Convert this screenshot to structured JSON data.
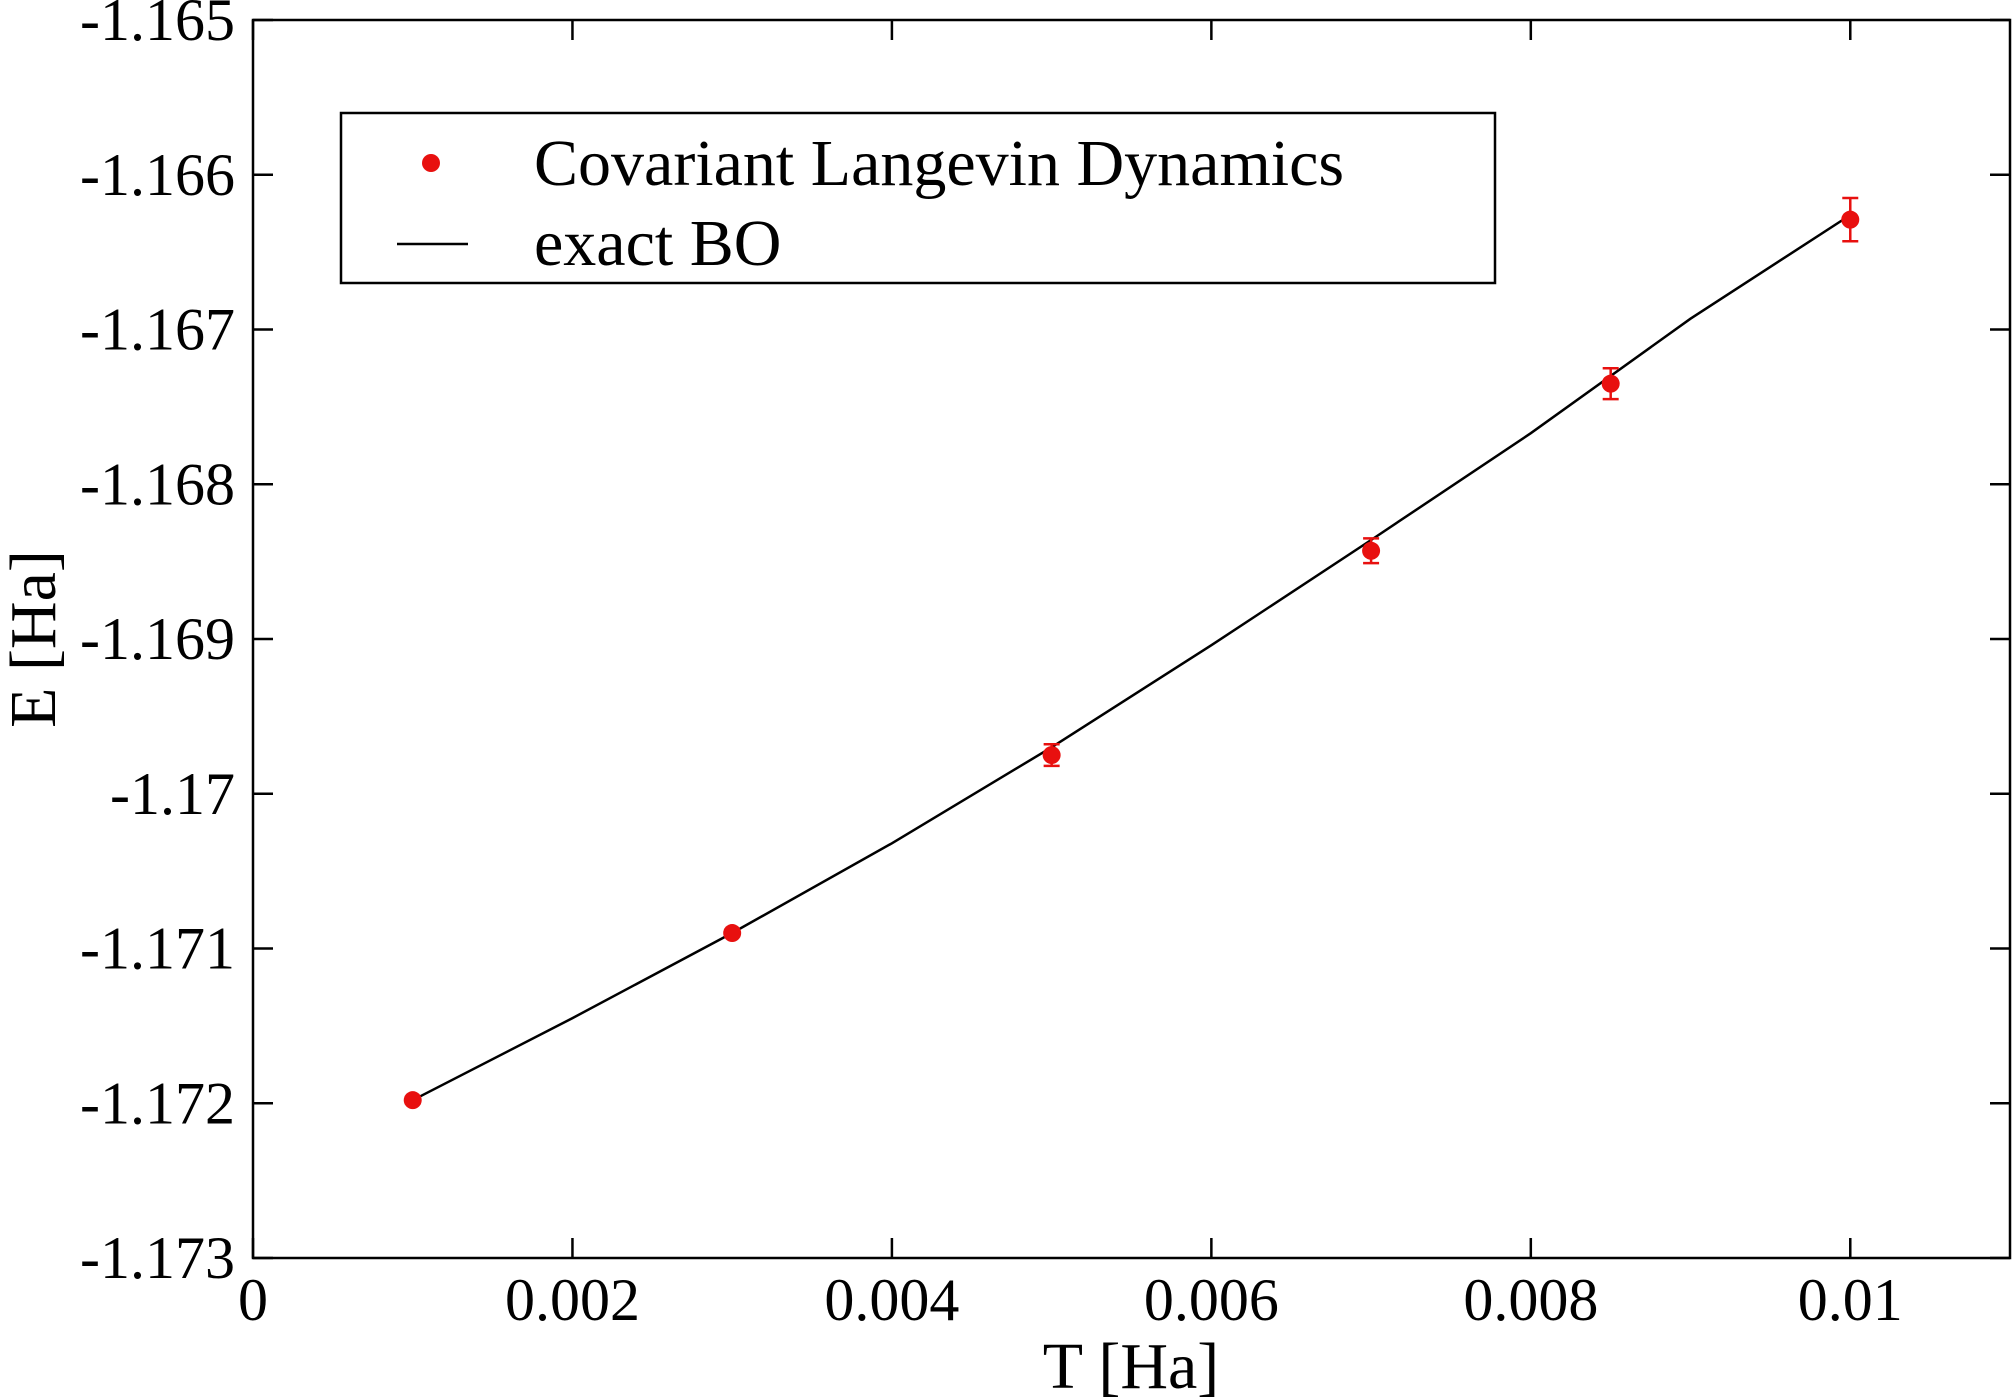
{
  "chart_data": {
    "type": "scatter",
    "title": "",
    "xlabel": "T [Ha]",
    "ylabel": "E [Ha]",
    "xlim": [
      0,
      0.011
    ],
    "ylim": [
      -1.173,
      -1.165
    ],
    "grid": false,
    "legend_position": "top-left",
    "x_ticks": [
      0,
      0.002,
      0.004,
      0.006,
      0.008,
      0.01
    ],
    "x_tick_labels": [
      "0",
      "0.002",
      "0.004",
      "0.006",
      "0.008",
      "0.01"
    ],
    "y_ticks": [
      -1.173,
      -1.172,
      -1.171,
      -1.17,
      -1.169,
      -1.168,
      -1.167,
      -1.166,
      -1.165
    ],
    "y_tick_labels": [
      "-1.173",
      "-1.172",
      "-1.171",
      "-1.17",
      "-1.169",
      "-1.168",
      "-1.167",
      "-1.166",
      "-1.165"
    ],
    "series": [
      {
        "name": "Covariant Langevin Dynamics",
        "kind": "points-with-errorbars",
        "color": "#e8100f",
        "x": [
          0.001,
          0.003,
          0.005,
          0.007,
          0.0085,
          0.01
        ],
        "y": [
          -1.17198,
          -1.1709,
          -1.16975,
          -1.16843,
          -1.16735,
          -1.16629
        ],
        "err": [
          2e-05,
          2e-05,
          7e-05,
          8e-05,
          0.0001,
          0.00014
        ]
      },
      {
        "name": "exact BO",
        "kind": "line",
        "color": "#000000",
        "x": [
          0.001,
          0.002,
          0.003,
          0.004,
          0.005,
          0.006,
          0.007,
          0.008,
          0.009,
          0.01
        ],
        "y": [
          -1.17198,
          -1.17145,
          -1.1709,
          -1.17032,
          -1.1697,
          -1.16904,
          -1.16836,
          -1.16767,
          -1.16693,
          -1.16626
        ]
      }
    ]
  }
}
